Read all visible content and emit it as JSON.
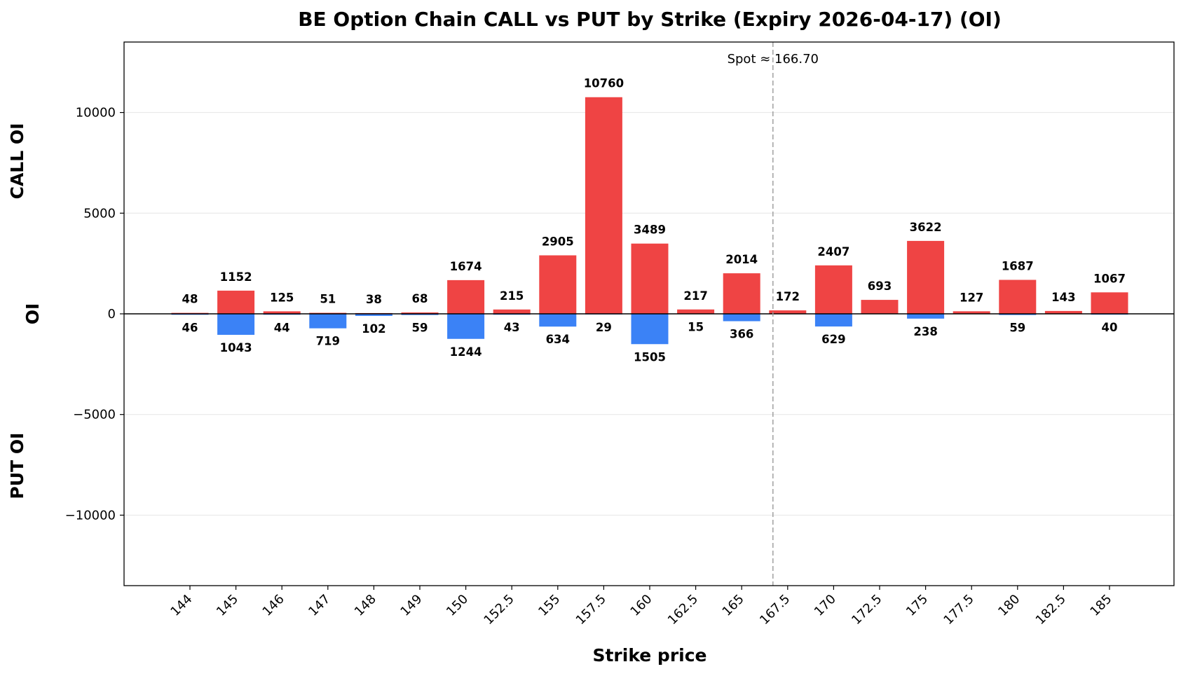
{
  "chart_data": {
    "type": "bar",
    "title": "BE Option Chain CALL vs PUT by Strike (Expiry 2026-04-17) (OI)",
    "xlabel": "Strike price",
    "ylabel": "OI",
    "ylabel_top": "CALL OI",
    "ylabel_bottom": "PUT OI",
    "ylim": [
      -13500,
      13500
    ],
    "yticks": [
      -10000,
      -5000,
      0,
      5000,
      10000
    ],
    "ytick_labels": [
      "−10000",
      "−5000",
      "0",
      "5000",
      "10000"
    ],
    "categories": [
      "144",
      "145",
      "146",
      "147",
      "148",
      "149",
      "150",
      "152.5",
      "155",
      "157.5",
      "160",
      "162.5",
      "165",
      "167.5",
      "170",
      "172.5",
      "175",
      "177.5",
      "180",
      "182.5",
      "185"
    ],
    "series": [
      {
        "name": "CALL OI",
        "color": "#ef4444",
        "values": [
          48,
          1152,
          125,
          51,
          38,
          68,
          1674,
          215,
          2905,
          10760,
          3489,
          217,
          2014,
          172,
          2407,
          693,
          3622,
          127,
          1687,
          143,
          1067
        ]
      },
      {
        "name": "PUT OI",
        "color": "#3b82f6",
        "values": [
          46,
          1043,
          44,
          719,
          102,
          59,
          1244,
          43,
          634,
          29,
          1505,
          15,
          366,
          null,
          629,
          null,
          238,
          null,
          59,
          null,
          40
        ]
      }
    ],
    "spot": {
      "value": 166.7,
      "label": "Spot ≈ 166.70",
      "line_style": "dashed",
      "line_color": "#999999"
    },
    "grid": "horizontal",
    "legend": "none"
  }
}
